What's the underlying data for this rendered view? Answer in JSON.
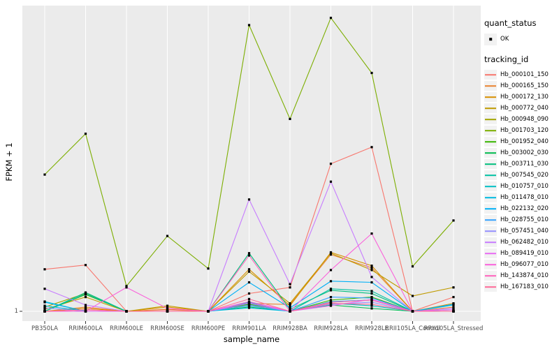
{
  "figure": {
    "background": "#FFFFFF",
    "panel_background": "#EBEBEB",
    "grid_color": "#FFFFFF",
    "tick_color": "#333333",
    "axis_text_color": "#4D4D4D",
    "point_color": "#000000",
    "legend_key_background": "#F2F2F2"
  },
  "legend": {
    "quant_status_title": "quant_status",
    "ok_label": "OK",
    "tracking_title": "tracking_id"
  },
  "chart_data": {
    "type": "line",
    "title": "",
    "xlabel": "sample_name",
    "ylabel": "FPKM + 1",
    "y_scale": "log10",
    "yticks": [
      "1"
    ],
    "grid": "vertical-major-only",
    "legend_position": "right",
    "marker": {
      "shape": "small-black-square",
      "meaning": "quant_status OK"
    },
    "categories": [
      "PB350LA",
      "RRIM600LA",
      "RRIM600LE",
      "RRIM600SE",
      "RRIM600PE",
      "RRIM901LA",
      "RRIM928BA",
      "RRIM928LA",
      "RRIM928LE",
      "RRII105LA_Control",
      "RRII105LA_Stressed"
    ],
    "series": [
      {
        "name": "Hb_000101_150",
        "color": "#F8766D",
        "values": [
          4.0,
          4.6,
          1.0,
          1.05,
          1.0,
          1.8,
          2.2,
          130,
          225,
          1.0,
          1.6
        ]
      },
      {
        "name": "Hb_000165_150",
        "color": "#EA8331",
        "values": [
          1.0,
          1.15,
          1.0,
          1.07,
          1.0,
          1.3,
          1.25,
          6.5,
          4.2,
          1.0,
          1.15
        ]
      },
      {
        "name": "Hb_000172_130",
        "color": "#D89000",
        "values": [
          1.0,
          1.1,
          1.0,
          1.15,
          1.0,
          4.0,
          1.2,
          7.0,
          4.5,
          1.0,
          1.3
        ]
      },
      {
        "name": "Hb_000772_040",
        "color": "#C09B00",
        "values": [
          1.07,
          1.6,
          1.0,
          1.2,
          1.0,
          3.7,
          1.3,
          6.8,
          3.9,
          1.66,
          2.2
        ]
      },
      {
        "name": "Hb_000948_090",
        "color": "#A3A500",
        "values": [
          1.15,
          1.8,
          1.0,
          1.0,
          1.0,
          1.26,
          1.0,
          1.35,
          1.45,
          1.0,
          1.0
        ]
      },
      {
        "name": "Hb_001703_120",
        "color": "#7CAE00",
        "values": [
          91,
          350,
          2.3,
          12,
          4.1,
          12600,
          570,
          16000,
          2600,
          4.4,
          20
        ]
      },
      {
        "name": "Hb_001952_040",
        "color": "#39B600",
        "values": [
          1.0,
          1.74,
          1.0,
          1.0,
          1.0,
          1.26,
          1.0,
          1.45,
          1.6,
          1.0,
          1.0
        ]
      },
      {
        "name": "Hb_003002_030",
        "color": "#00BB4E",
        "values": [
          1.0,
          1.0,
          1.0,
          1.0,
          1.0,
          1.15,
          1.0,
          1.23,
          1.1,
          1.0,
          1.0
        ]
      },
      {
        "name": "Hb_003711_030",
        "color": "#00BF7D",
        "values": [
          1.0,
          1.86,
          1.0,
          1.0,
          1.0,
          6.8,
          1.07,
          2.0,
          1.8,
          1.0,
          1.0
        ]
      },
      {
        "name": "Hb_007545_020",
        "color": "#00C1A3",
        "values": [
          1.0,
          1.78,
          1.0,
          1.0,
          1.0,
          1.35,
          1.0,
          2.1,
          1.95,
          1.0,
          1.0
        ]
      },
      {
        "name": "Hb_010757_010",
        "color": "#00BFC4",
        "values": [
          1.38,
          1.0,
          1.0,
          1.0,
          1.0,
          1.2,
          1.0,
          1.3,
          1.2,
          1.0,
          1.05
        ]
      },
      {
        "name": "Hb_011478_010",
        "color": "#00BAE0",
        "values": [
          1.2,
          1.0,
          1.0,
          1.0,
          1.0,
          1.12,
          1.0,
          1.38,
          1.45,
          1.0,
          1.23
        ]
      },
      {
        "name": "Hb_022132_020",
        "color": "#00B0F6",
        "values": [
          1.35,
          1.0,
          1.0,
          1.0,
          1.0,
          2.6,
          1.12,
          2.7,
          2.6,
          1.0,
          1.26
        ]
      },
      {
        "name": "Hb_028755_010",
        "color": "#35A2FF",
        "values": [
          1.0,
          1.0,
          1.0,
          1.0,
          1.0,
          1.3,
          1.0,
          1.6,
          1.55,
          1.0,
          1.0
        ]
      },
      {
        "name": "Hb_057451_040",
        "color": "#9590FF",
        "values": [
          1.12,
          1.0,
          1.0,
          1.0,
          1.0,
          1.23,
          1.0,
          1.26,
          1.35,
          1.0,
          1.0
        ]
      },
      {
        "name": "Hb_062482_010",
        "color": "#C77CFF",
        "values": [
          2.1,
          1.23,
          1.0,
          1.0,
          1.0,
          40,
          2.45,
          72,
          3.1,
          1.0,
          1.1
        ]
      },
      {
        "name": "Hb_089419_010",
        "color": "#E76BF3",
        "values": [
          1.0,
          1.0,
          1.0,
          1.0,
          1.0,
          1.32,
          1.0,
          1.2,
          1.48,
          1.0,
          1.0
        ]
      },
      {
        "name": "Hb_096077_010",
        "color": "#FA62DB",
        "values": [
          1.0,
          1.0,
          2.2,
          1.1,
          1.0,
          1.38,
          1.0,
          3.9,
          13,
          1.0,
          1.05
        ]
      },
      {
        "name": "Hb_143874_010",
        "color": "#FF62BC",
        "values": [
          1.0,
          1.05,
          1.0,
          1.0,
          1.0,
          6.3,
          1.0,
          1.35,
          1.45,
          1.0,
          1.0
        ]
      },
      {
        "name": "Hb_167183_010",
        "color": "#FF6A98",
        "values": [
          1.0,
          1.05,
          1.0,
          1.0,
          1.0,
          1.5,
          1.0,
          1.3,
          1.26,
          1.0,
          1.0
        ]
      }
    ]
  }
}
